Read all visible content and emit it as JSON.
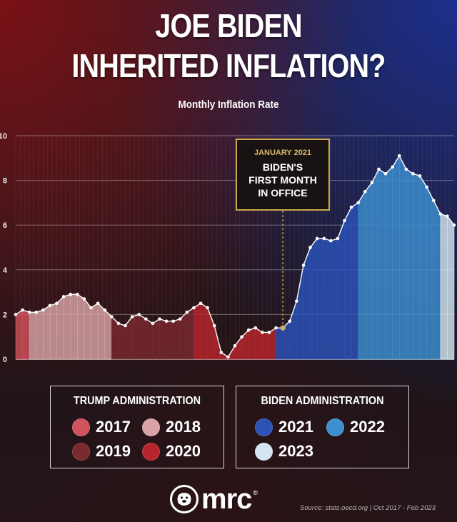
{
  "title_line1": "JOE BIDEN",
  "title_line2": "INHERITED INFLATION?",
  "subtitle": "Monthly Inflation Rate",
  "callout": {
    "date": "JANUARY 2021",
    "line1": "BIDEN'S",
    "line2": "FIRST MONTH",
    "line3": "IN OFFICE"
  },
  "legends": {
    "trump": {
      "title": "TRUMP ADMINISTRATION",
      "items": [
        {
          "label": "2017",
          "color": "#cf525c"
        },
        {
          "label": "2018",
          "color": "#d8a3a6"
        },
        {
          "label": "2019",
          "color": "#7a2a2e"
        },
        {
          "label": "2020",
          "color": "#b8262d"
        }
      ]
    },
    "biden": {
      "title": "BIDEN ADMINISTRATION",
      "items": [
        {
          "label": "2021",
          "color": "#2c52b8"
        },
        {
          "label": "2022",
          "color": "#3d8fcf"
        },
        {
          "label": "2023",
          "color": "#d4e6f2"
        }
      ]
    }
  },
  "logo": {
    "text": "mrc",
    "mark": "®"
  },
  "source": "Source: stats.oecd.org  |  Oct 2017 - Feb 2023",
  "chart_data": {
    "type": "area",
    "title": "Monthly Inflation Rate",
    "y_ticks": [
      "0",
      "2",
      "4",
      "6",
      "8",
      "10"
    ],
    "ylim": [
      0,
      10
    ],
    "grid": true,
    "x_start": "Oct 2017",
    "x_end": "Feb 2023",
    "x": [
      "2017-10",
      "2017-11",
      "2017-12",
      "2018-01",
      "2018-02",
      "2018-03",
      "2018-04",
      "2018-05",
      "2018-06",
      "2018-07",
      "2018-08",
      "2018-09",
      "2018-10",
      "2018-11",
      "2018-12",
      "2019-01",
      "2019-02",
      "2019-03",
      "2019-04",
      "2019-05",
      "2019-06",
      "2019-07",
      "2019-08",
      "2019-09",
      "2019-10",
      "2019-11",
      "2019-12",
      "2020-01",
      "2020-02",
      "2020-03",
      "2020-04",
      "2020-05",
      "2020-06",
      "2020-07",
      "2020-08",
      "2020-09",
      "2020-10",
      "2020-11",
      "2020-12",
      "2021-01",
      "2021-02",
      "2021-03",
      "2021-04",
      "2021-05",
      "2021-06",
      "2021-07",
      "2021-08",
      "2021-09",
      "2021-10",
      "2021-11",
      "2021-12",
      "2022-01",
      "2022-02",
      "2022-03",
      "2022-04",
      "2022-05",
      "2022-06",
      "2022-07",
      "2022-08",
      "2022-09",
      "2022-10",
      "2022-11",
      "2022-12",
      "2023-01",
      "2023-02"
    ],
    "values": [
      2.0,
      2.2,
      2.1,
      2.1,
      2.2,
      2.4,
      2.5,
      2.8,
      2.9,
      2.9,
      2.7,
      2.3,
      2.5,
      2.2,
      1.9,
      1.6,
      1.5,
      1.9,
      2.0,
      1.8,
      1.6,
      1.8,
      1.7,
      1.7,
      1.8,
      2.1,
      2.3,
      2.5,
      2.3,
      1.5,
      0.3,
      0.1,
      0.6,
      1.0,
      1.3,
      1.4,
      1.2,
      1.2,
      1.4,
      1.4,
      1.7,
      2.6,
      4.2,
      5.0,
      5.4,
      5.4,
      5.3,
      5.4,
      6.2,
      6.8,
      7.0,
      7.5,
      7.9,
      8.5,
      8.3,
      8.6,
      9.1,
      8.5,
      8.3,
      8.2,
      7.7,
      7.1,
      6.5,
      6.4,
      6.0
    ],
    "callout_at": "2021-01",
    "year_colors": {
      "2017": "#cf525c",
      "2018": "#d8a3a6",
      "2019": "#7a2a2e",
      "2020": "#b8262d",
      "2021": "#2c52b8",
      "2022": "#3d8fcf",
      "2023": "#d4e6f2"
    }
  }
}
